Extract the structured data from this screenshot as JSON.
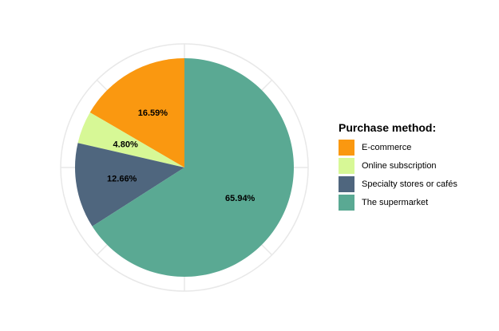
{
  "chart_data": {
    "type": "pie",
    "title": "",
    "legend_title": "Purchase method:",
    "legend_position": "right",
    "grid": true,
    "slices": [
      {
        "label": "E-commerce",
        "value": 16.59,
        "value_label": "16.59%",
        "color": "#fa9810"
      },
      {
        "label": "Online subscription",
        "value": 4.8,
        "value_label": "4.80%",
        "color": "#d7f896"
      },
      {
        "label": "Specialty stores or cafés",
        "value": 12.66,
        "value_label": "12.66%",
        "color": "#4f667e"
      },
      {
        "label": "The supermarket",
        "value": 65.94,
        "value_label": "65.94%",
        "color": "#5aa993"
      }
    ],
    "start": "12 o'clock",
    "direction": "counterclockwise",
    "grid_color": "#e8e8e8"
  }
}
